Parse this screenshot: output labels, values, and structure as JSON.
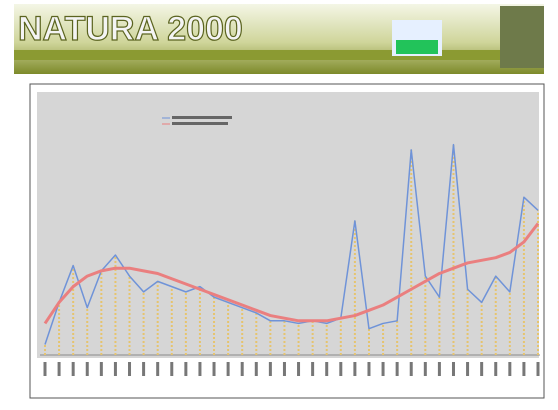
{
  "header": {
    "title": "NATURA 2000"
  },
  "chart_data": {
    "type": "line",
    "categories": [
      null,
      null,
      null,
      null,
      null,
      null,
      null,
      null,
      null,
      null,
      null,
      null,
      null,
      null,
      null,
      null,
      null,
      null,
      null,
      null,
      null,
      null,
      null,
      null,
      null,
      null,
      null,
      null,
      null,
      null,
      null,
      null,
      null,
      null,
      null,
      null
    ],
    "series": [
      {
        "color": "#6f93d8",
        "bar_color": "#e6c46e",
        "values": [
          4,
          20,
          34,
          18,
          32,
          38,
          30,
          24,
          28,
          26,
          24,
          26,
          22,
          20,
          18,
          16,
          13,
          13,
          12,
          13,
          12,
          14,
          51,
          10,
          12,
          13,
          78,
          30,
          22,
          80,
          25,
          20,
          30,
          24,
          60,
          55
        ]
      },
      {
        "color": "#ea7f7f",
        "values": [
          12,
          20,
          26,
          30,
          32,
          33,
          33,
          32,
          31,
          29,
          27,
          25,
          23,
          21,
          19,
          17,
          15,
          14,
          13,
          13,
          13,
          14,
          15,
          17,
          19,
          22,
          25,
          28,
          31,
          33,
          35,
          36,
          37,
          39,
          43,
          50
        ]
      }
    ],
    "ylim": [
      0,
      100
    ]
  }
}
